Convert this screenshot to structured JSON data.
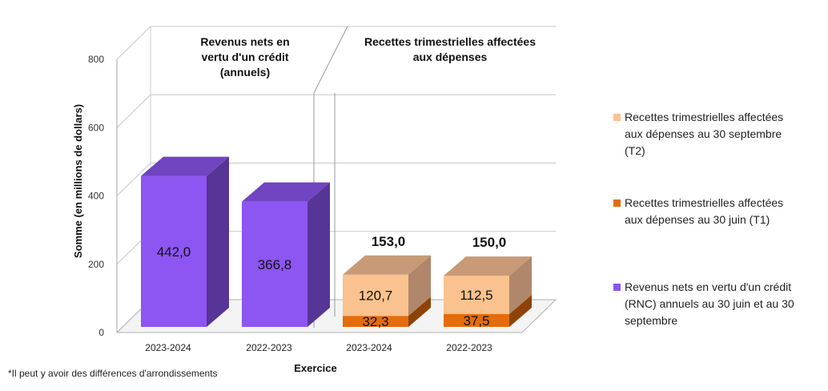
{
  "chart_data": {
    "type": "bar",
    "stacked": true,
    "three_d": true,
    "ylabel": "Somme (en millions de dollars)",
    "xlabel": "Exercice",
    "ylim": [
      0,
      800
    ],
    "yticks": [
      0,
      200,
      400,
      600,
      800
    ],
    "grid": true,
    "legend_position": "right",
    "panels": [
      {
        "title_lines": [
          "Revenus nets en",
          "vertu d'un crédit",
          "(annuels)"
        ],
        "bars": [
          {
            "category": "2023-2024",
            "segments": [
              {
                "series": "rnc",
                "value": 442.0,
                "label": "442,0"
              }
            ]
          },
          {
            "category": "2022-2023",
            "segments": [
              {
                "series": "rnc",
                "value": 366.8,
                "label": "366,8"
              }
            ]
          }
        ]
      },
      {
        "title_lines": [
          "Recettes trimestrielles affectées",
          "aux dépenses"
        ],
        "bars": [
          {
            "category": "2023-2024",
            "total": 153.0,
            "total_label": "153,0",
            "segments": [
              {
                "series": "t1",
                "value": 32.3,
                "label": "32,3"
              },
              {
                "series": "t2",
                "value": 120.7,
                "label": "120,7"
              }
            ]
          },
          {
            "category": "2022-2023",
            "total": 150.0,
            "total_label": "150,0",
            "segments": [
              {
                "series": "t1",
                "value": 37.5,
                "label": "37,5"
              },
              {
                "series": "t2",
                "value": 112.5,
                "label": "112,5"
              }
            ]
          }
        ]
      }
    ],
    "series": [
      {
        "key": "t2",
        "name_lines": [
          "Recettes trimestrielles affectées",
          "aux dépenses au 30 septembre",
          "(T2)"
        ],
        "color": "#F9C28E"
      },
      {
        "key": "t1",
        "name_lines": [
          "Recettes trimestrielles affectées",
          "aux dépenses au 30 juin (T1)"
        ],
        "color": "#E46C0A"
      },
      {
        "key": "rnc",
        "name_lines": [
          "Revenus nets en vertu d'un crédit",
          "(RNC) annuels au 30 juin et au 30",
          "septembre"
        ],
        "color": "#8D55F2"
      }
    ]
  },
  "footnote": "*Il peut y avoir des différences d'arrondissements"
}
